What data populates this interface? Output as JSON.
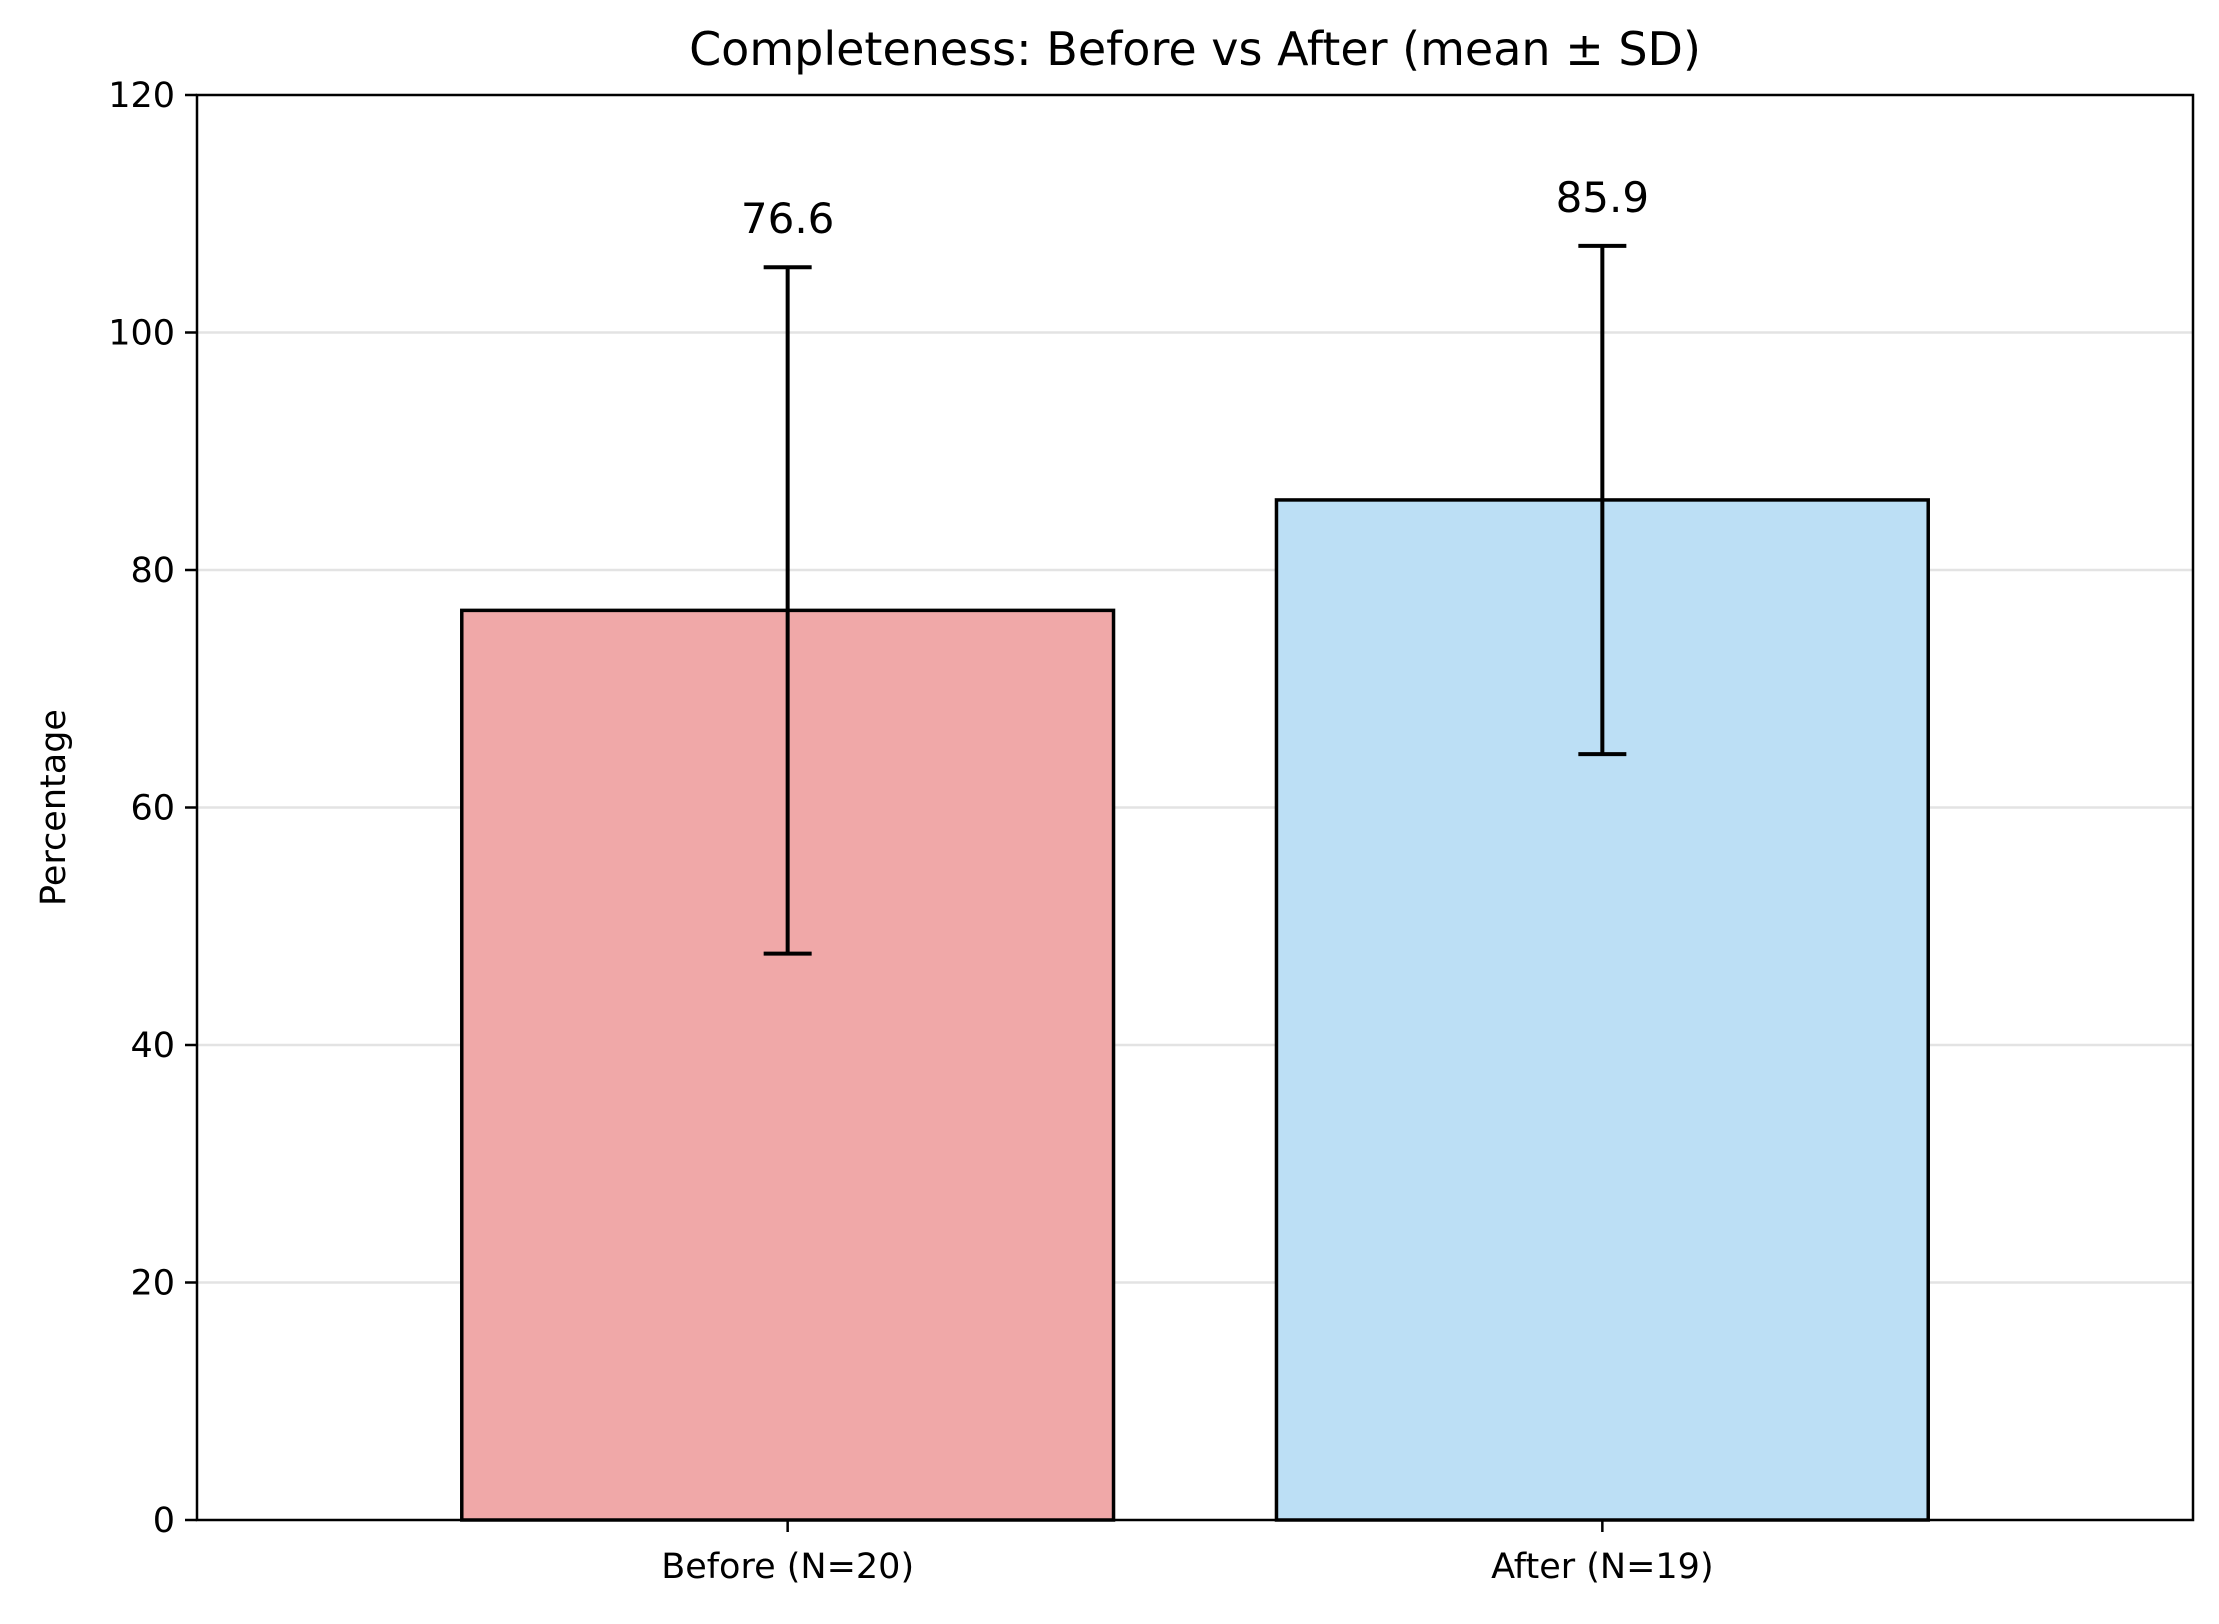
{
  "chart_data": {
    "type": "bar",
    "title": "Completeness: Before vs After (mean ± SD)",
    "xlabel": "",
    "ylabel": "Percentage",
    "categories": [
      "Before (N=20)",
      "After (N=19)"
    ],
    "values": [
      76.6,
      85.9
    ],
    "value_labels": [
      "76.6",
      "85.9"
    ],
    "error_sd": [
      28.9,
      21.4
    ],
    "colors": [
      "#f0a8a8",
      "#bcdff5"
    ],
    "ylim": [
      0,
      120
    ],
    "yticks": [
      0,
      20,
      40,
      60,
      80,
      100,
      120
    ],
    "ytick_labels": [
      "0",
      "20",
      "40",
      "60",
      "80",
      "100",
      "120"
    ],
    "grid": "horizontal",
    "legend": "none"
  }
}
